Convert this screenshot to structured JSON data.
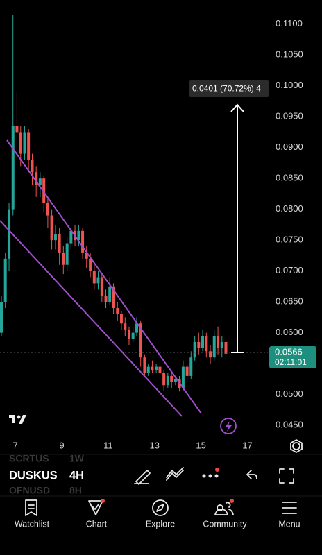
{
  "chart_data": {
    "type": "candlestick",
    "x": [
      6.4,
      6.57,
      6.73,
      6.9,
      7.07,
      7.23,
      7.4,
      7.57,
      7.73,
      7.9,
      8.07,
      8.23,
      8.4,
      8.57,
      8.73,
      8.9,
      9.07,
      9.23,
      9.4,
      9.57,
      9.73,
      9.9,
      10.07,
      10.23,
      10.4,
      10.57,
      10.73,
      10.9,
      11.07,
      11.23,
      11.4,
      11.57,
      11.73,
      11.9,
      12.07,
      12.23,
      12.4,
      12.57,
      12.73,
      12.9,
      13.07,
      13.23,
      13.4,
      13.57,
      13.73,
      13.9,
      14.07,
      14.23,
      14.4,
      14.57,
      14.73,
      14.9,
      15.07,
      15.23,
      15.4,
      15.57,
      15.73,
      15.9,
      16.07
    ],
    "open": [
      0.06,
      0.065,
      0.072,
      0.08,
      0.0935,
      0.0925,
      0.089,
      0.0925,
      0.088,
      0.086,
      0.084,
      0.085,
      0.081,
      0.079,
      0.075,
      0.076,
      0.073,
      0.071,
      0.0745,
      0.0765,
      0.075,
      0.0765,
      0.073,
      0.072,
      0.07,
      0.068,
      0.069,
      0.066,
      0.065,
      0.0675,
      0.064,
      0.063,
      0.0615,
      0.0605,
      0.059,
      0.06,
      0.0615,
      0.056,
      0.0535,
      0.0545,
      0.054,
      0.0545,
      0.0535,
      0.0515,
      0.053,
      0.052,
      0.0525,
      0.051,
      0.0545,
      0.053,
      0.056,
      0.0585,
      0.0575,
      0.0595,
      0.057,
      0.056,
      0.0595,
      0.0575,
      0.0585
    ],
    "high": [
      0.066,
      0.073,
      0.081,
      0.1115,
      0.099,
      0.0935,
      0.0935,
      0.093,
      0.089,
      0.087,
      0.086,
      0.0855,
      0.082,
      0.08,
      0.0775,
      0.077,
      0.074,
      0.0755,
      0.077,
      0.0775,
      0.0775,
      0.077,
      0.074,
      0.073,
      0.071,
      0.07,
      0.0695,
      0.067,
      0.069,
      0.068,
      0.065,
      0.0635,
      0.0625,
      0.061,
      0.061,
      0.0625,
      0.062,
      0.0565,
      0.055,
      0.0555,
      0.055,
      0.055,
      0.054,
      0.0535,
      0.0535,
      0.053,
      0.053,
      0.0555,
      0.055,
      0.057,
      0.0595,
      0.06,
      0.0605,
      0.06,
      0.058,
      0.0605,
      0.061,
      0.0595,
      0.059
    ],
    "low": [
      0.0595,
      0.064,
      0.07,
      0.079,
      0.088,
      0.087,
      0.088,
      0.086,
      0.084,
      0.082,
      0.082,
      0.0795,
      0.077,
      0.0735,
      0.0735,
      0.071,
      0.0695,
      0.07,
      0.0735,
      0.074,
      0.074,
      0.072,
      0.0705,
      0.069,
      0.067,
      0.067,
      0.065,
      0.064,
      0.0645,
      0.063,
      0.062,
      0.0605,
      0.0595,
      0.058,
      0.0585,
      0.0595,
      0.0545,
      0.053,
      0.053,
      0.0535,
      0.0535,
      0.0525,
      0.0505,
      0.051,
      0.051,
      0.0515,
      0.0505,
      0.0505,
      0.052,
      0.0525,
      0.0555,
      0.0565,
      0.057,
      0.056,
      0.055,
      0.0555,
      0.0565,
      0.056,
      0.0555
    ],
    "close": [
      0.065,
      0.072,
      0.08,
      0.0935,
      0.0925,
      0.089,
      0.0925,
      0.088,
      0.086,
      0.084,
      0.085,
      0.081,
      0.079,
      0.075,
      0.076,
      0.073,
      0.071,
      0.0745,
      0.0765,
      0.075,
      0.0765,
      0.073,
      0.072,
      0.07,
      0.068,
      0.069,
      0.066,
      0.065,
      0.0675,
      0.064,
      0.063,
      0.0615,
      0.0605,
      0.059,
      0.06,
      0.0615,
      0.056,
      0.0535,
      0.0545,
      0.054,
      0.0545,
      0.0535,
      0.0515,
      0.053,
      0.052,
      0.0525,
      0.051,
      0.0545,
      0.053,
      0.056,
      0.0585,
      0.0575,
      0.0595,
      0.057,
      0.056,
      0.0595,
      0.0575,
      0.0585,
      0.0566
    ],
    "up_color": "#26a69a",
    "down_color": "#ef5350",
    "xlim": [
      6.34,
      17.88
    ],
    "xticks": [
      7,
      9,
      11,
      13,
      15,
      17
    ],
    "ylim": [
      0.0431,
      0.1139
    ],
    "yticks": [
      {
        "value": 0.11,
        "label": "0.1100"
      },
      {
        "value": 0.105,
        "label": "0.1050"
      },
      {
        "value": 0.1,
        "label": "0.1000"
      },
      {
        "value": 0.095,
        "label": "0.0950"
      },
      {
        "value": 0.09,
        "label": "0.0900"
      },
      {
        "value": 0.085,
        "label": "0.0850"
      },
      {
        "value": 0.08,
        "label": "0.0800"
      },
      {
        "value": 0.075,
        "label": "0.0750"
      },
      {
        "value": 0.07,
        "label": "0.0700"
      },
      {
        "value": 0.065,
        "label": "0.0650"
      },
      {
        "value": 0.06,
        "label": "0.0600"
      },
      {
        "value": 0.055,
        "label": "0.0550"
      },
      {
        "value": 0.05,
        "label": "0.0500"
      },
      {
        "value": 0.045,
        "label": "0.0450"
      }
    ],
    "grid": false,
    "countdown": "02:11:01",
    "measure_label": "0.0401 (70.72%) 4"
  },
  "toolbar": {
    "prev_symbol": "SCRTUS",
    "prev_interval": "1W",
    "symbol": "DUSKUS",
    "interval": "4H",
    "next_symbol": "OFNUSD",
    "next_interval": "8H"
  },
  "tabs": [
    "Watchlist",
    "Chart",
    "Explore",
    "Community",
    "Menu"
  ]
}
